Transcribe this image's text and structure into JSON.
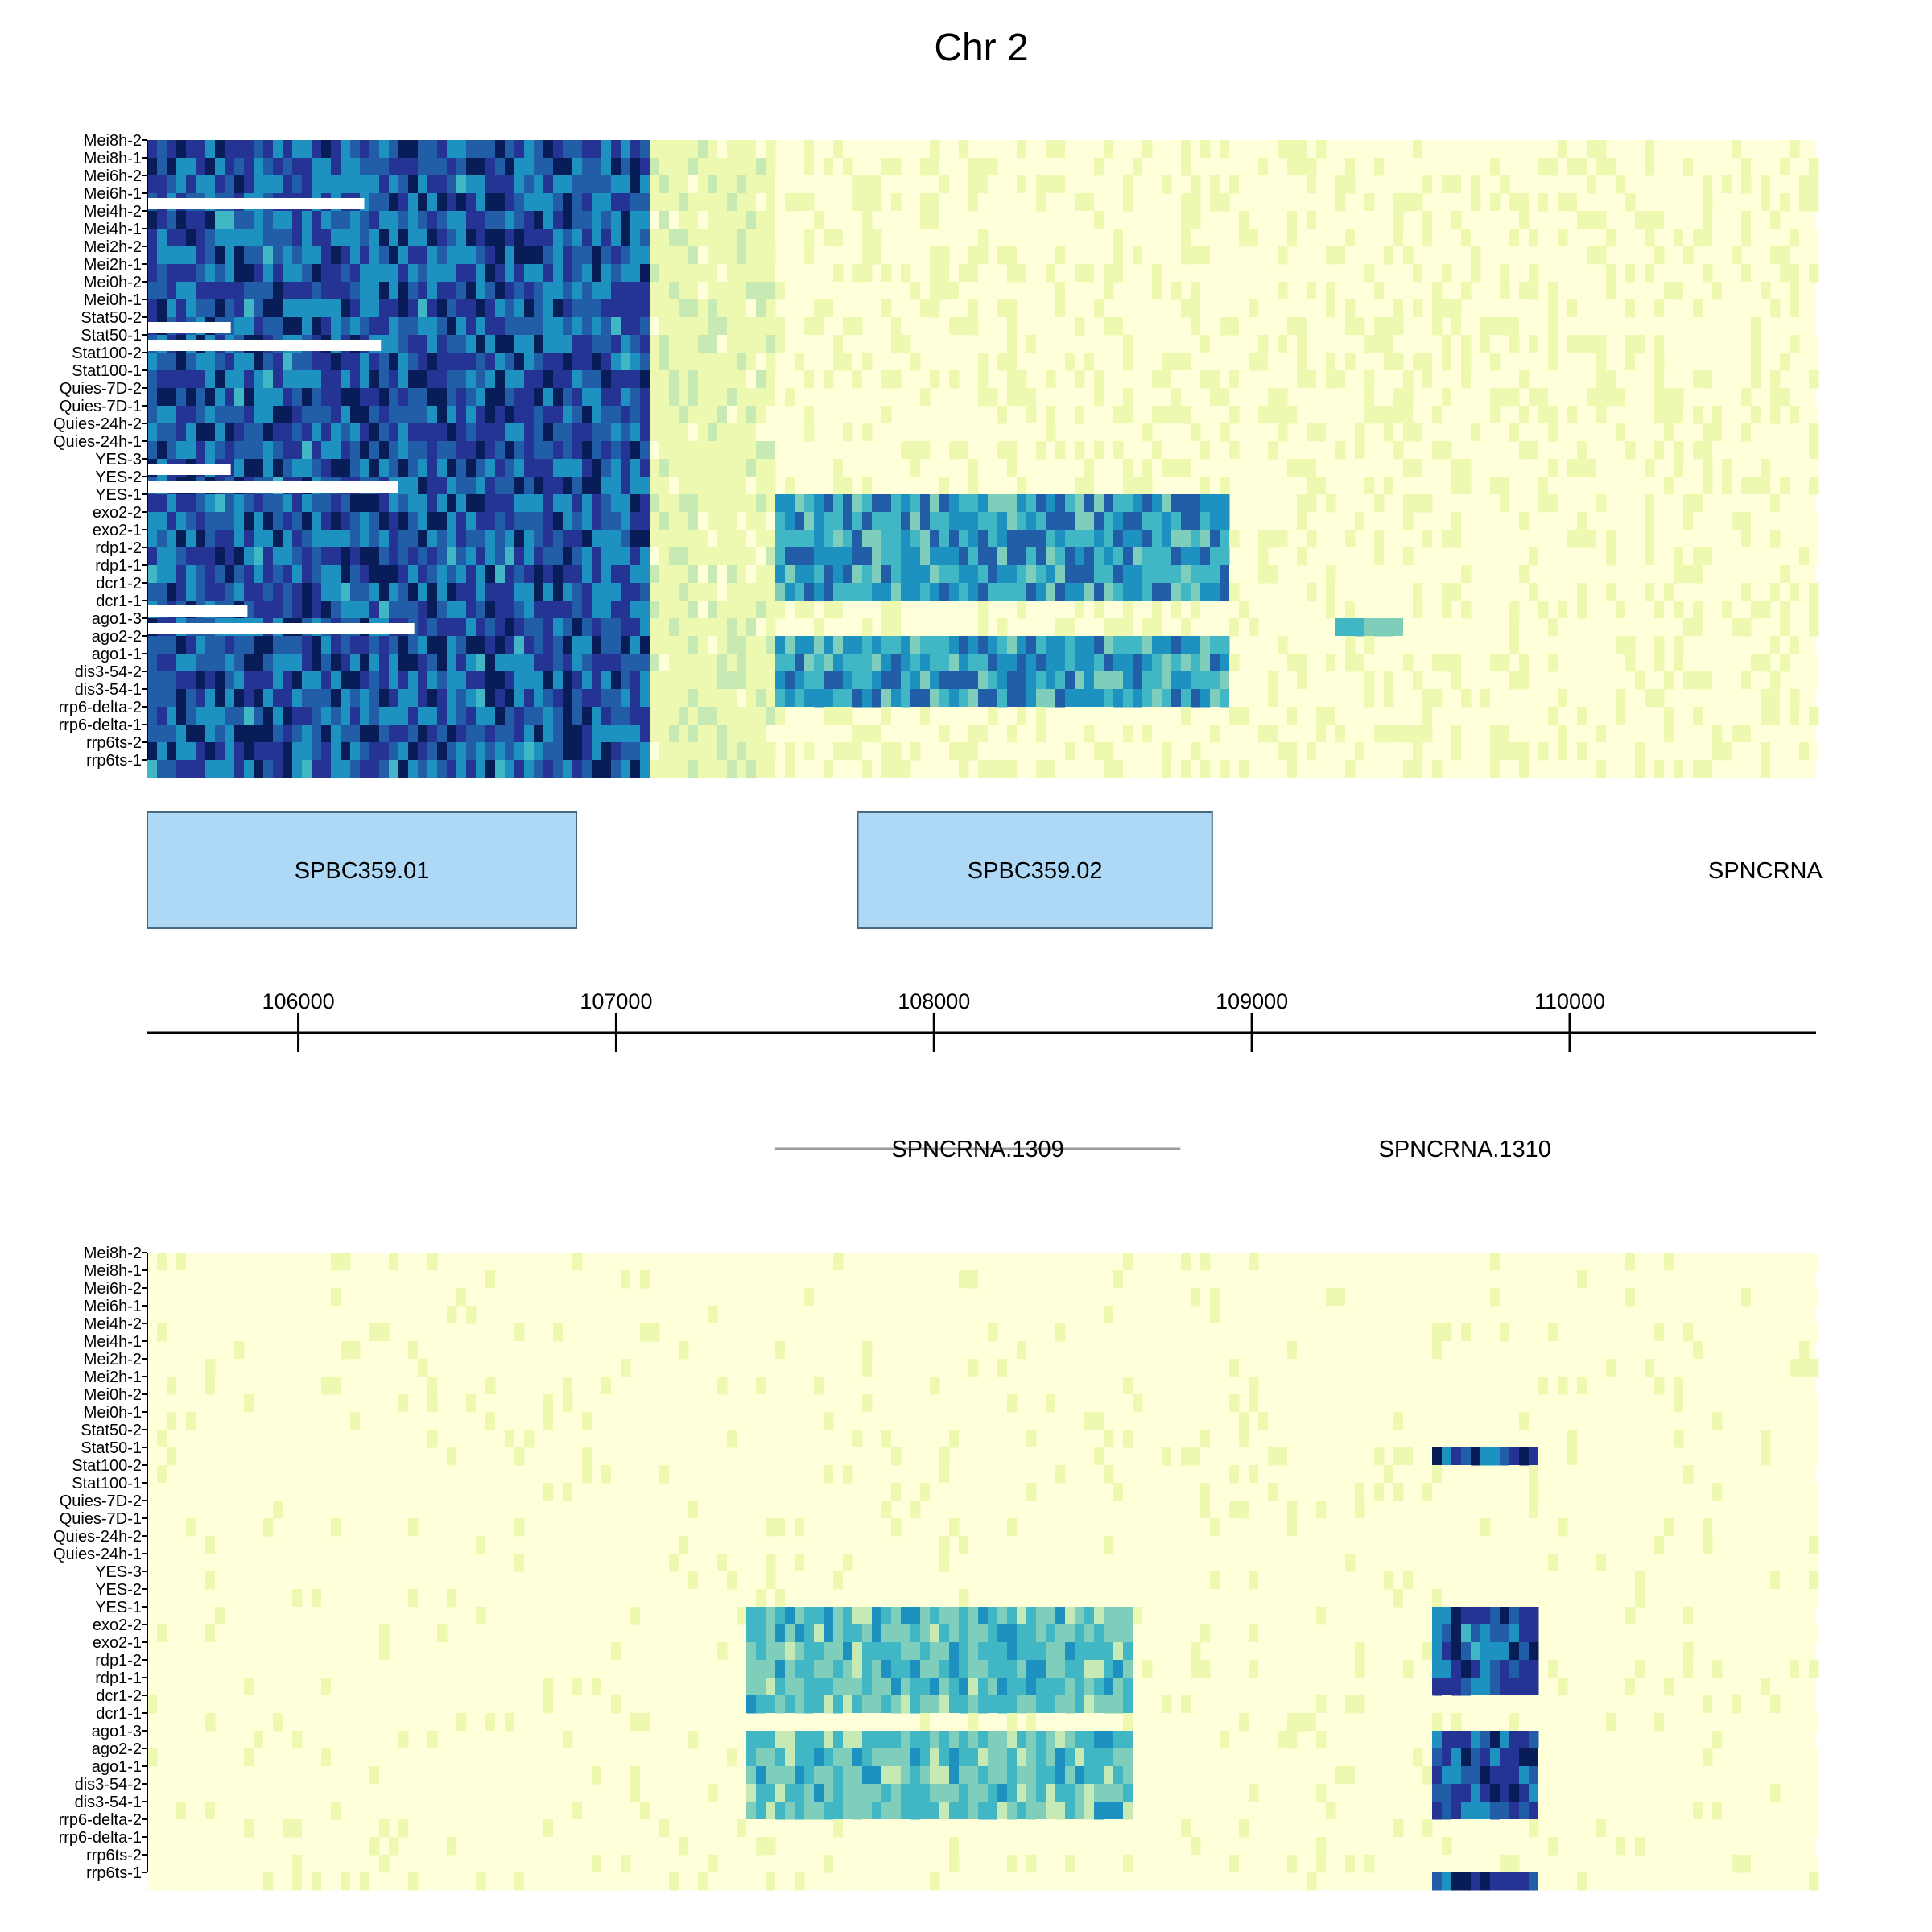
{
  "title": "Chr 2",
  "chart_data": {
    "type": "heatmap",
    "title": "Chr 2",
    "x_range": [
      105525,
      110775
    ],
    "axis": {
      "ticks": [
        106000,
        107000,
        108000,
        109000,
        110000
      ],
      "tick_labels": [
        "106000",
        "107000",
        "108000",
        "109000",
        "110000"
      ]
    },
    "samples": [
      "Mei8h-2",
      "Mei8h-1",
      "Mei6h-2",
      "Mei6h-1",
      "Mei4h-2",
      "Mei4h-1",
      "Mei2h-2",
      "Mei2h-1",
      "Mei0h-2",
      "Mei0h-1",
      "Stat50-2",
      "Stat50-1",
      "Stat100-2",
      "Stat100-1",
      "Quies-7D-2",
      "Quies-7D-1",
      "Quies-24h-2",
      "Quies-24h-1",
      "YES-3",
      "YES-2",
      "YES-1",
      "exo2-2",
      "exo2-1",
      "rdp1-2",
      "rdp1-1",
      "dcr1-2",
      "dcr1-1",
      "ago1-3",
      "ago2-2",
      "ago1-1",
      "dis3-54-2",
      "dis3-54-1",
      "rrp6-delta-2",
      "rrp6-delta-1",
      "rrp6ts-2",
      "rrp6ts-1"
    ],
    "color_scale": [
      "#ffffd9",
      "#edf8b1",
      "#c7e9b4",
      "#7fcdbb",
      "#41b6c4",
      "#1d91c0",
      "#225ea8",
      "#253494",
      "#081d58"
    ],
    "heatmaps": [
      {
        "strand": "forward",
        "regions": [
          {
            "from": 105525,
            "to": 107075,
            "intensity": [
              0.55,
              0.95
            ],
            "rows": "all"
          },
          {
            "from": 107075,
            "to": 107500,
            "intensity": [
              0.1,
              0.25
            ],
            "rows": "all"
          },
          {
            "from": 107500,
            "to": 108900,
            "intensity": [
              0.4,
              0.75
            ],
            "rows": [
              "YES-1",
              "exo2-2",
              "exo2-1",
              "rdp1-2",
              "rdp1-1",
              "dcr1-2",
              "ago2-2",
              "ago1-1",
              "dis3-54-2",
              "dis3-54-1"
            ]
          },
          {
            "from": 109250,
            "to": 109450,
            "intensity": [
              0.35,
              0.5
            ],
            "rows": [
              "ago1-3"
            ]
          },
          {
            "from": 107500,
            "to": 110775,
            "intensity": [
              0.0,
              0.15
            ],
            "rows": "others"
          }
        ]
      },
      {
        "strand": "reverse",
        "regions": [
          {
            "from": 107400,
            "to": 108600,
            "intensity": [
              0.3,
              0.6
            ],
            "rows": [
              "YES-1",
              "exo2-2",
              "exo2-1",
              "rdp1-2",
              "rdp1-1",
              "dcr1-2",
              "ago1-3",
              "ago2-2",
              "ago1-1",
              "dis3-54-2",
              "dis3-54-1"
            ]
          },
          {
            "from": 109550,
            "to": 109900,
            "intensity": [
              0.55,
              0.95
            ],
            "rows": [
              "Stat50-1",
              "YES-1",
              "exo2-2",
              "exo2-1",
              "rdp1-2",
              "rdp1-1",
              "ago1-3",
              "ago2-2",
              "ago1-1",
              "dis3-54-2",
              "dis3-54-1",
              "rrp6ts-1"
            ]
          },
          {
            "from": 105525,
            "to": 110775,
            "intensity": [
              0.0,
              0.12
            ],
            "rows": "others"
          }
        ]
      }
    ],
    "genes": [
      {
        "name": "SPBC359.01",
        "start": 105525,
        "end": 106875,
        "track": "forward"
      },
      {
        "name": "SPBC359.02",
        "start": 107760,
        "end": 108875,
        "track": "forward"
      },
      {
        "name": "SPNCRNA.1309",
        "start": 107500,
        "end": 108775,
        "track": "reverse"
      },
      {
        "name": "SPNCRNA.1310",
        "start": 109380,
        "end": 109960,
        "track": "reverse"
      }
    ],
    "edge_label": "SPNCRNA"
  }
}
